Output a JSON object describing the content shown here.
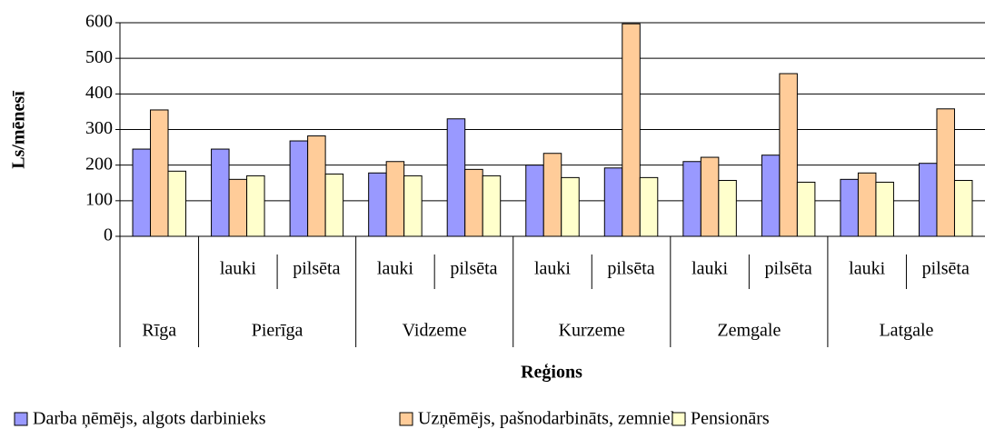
{
  "chart_data": {
    "type": "bar",
    "y_label": "Ls/mēnesī",
    "x_label": "Reģions",
    "groups": [
      {
        "name": "Rīga",
        "categories": [
          null
        ]
      },
      {
        "name": "Pierīga",
        "categories": [
          "lauki",
          "pilsēta"
        ]
      },
      {
        "name": "Vidzeme",
        "categories": [
          "lauki",
          "pilsēta"
        ]
      },
      {
        "name": "Kurzeme",
        "categories": [
          "lauki",
          "pilsēta"
        ]
      },
      {
        "name": "Zemgale",
        "categories": [
          "lauki",
          "pilsēta"
        ]
      },
      {
        "name": "Latgale",
        "categories": [
          "lauki",
          "pilsēta"
        ]
      }
    ],
    "series": [
      {
        "name": "Darba ņēmējs, algots darbinieks",
        "color": "#9999ff",
        "values": [
          245,
          245,
          268,
          178,
          330,
          200,
          192,
          210,
          228,
          160,
          205
        ]
      },
      {
        "name": "Uzņēmējs, pašnodarbināts, zemnieks",
        "color": "#ffcc99",
        "values": [
          355,
          160,
          282,
          210,
          188,
          233,
          597,
          222,
          457,
          178,
          358
        ]
      },
      {
        "name": "Pensionārs",
        "color": "#ffffcc",
        "values": [
          183,
          170,
          175,
          170,
          170,
          165,
          165,
          157,
          152,
          152,
          157
        ]
      }
    ],
    "ylim": [
      0,
      600
    ],
    "yticks": [
      0,
      100,
      200,
      300,
      400,
      500,
      600
    ],
    "grid": true
  }
}
